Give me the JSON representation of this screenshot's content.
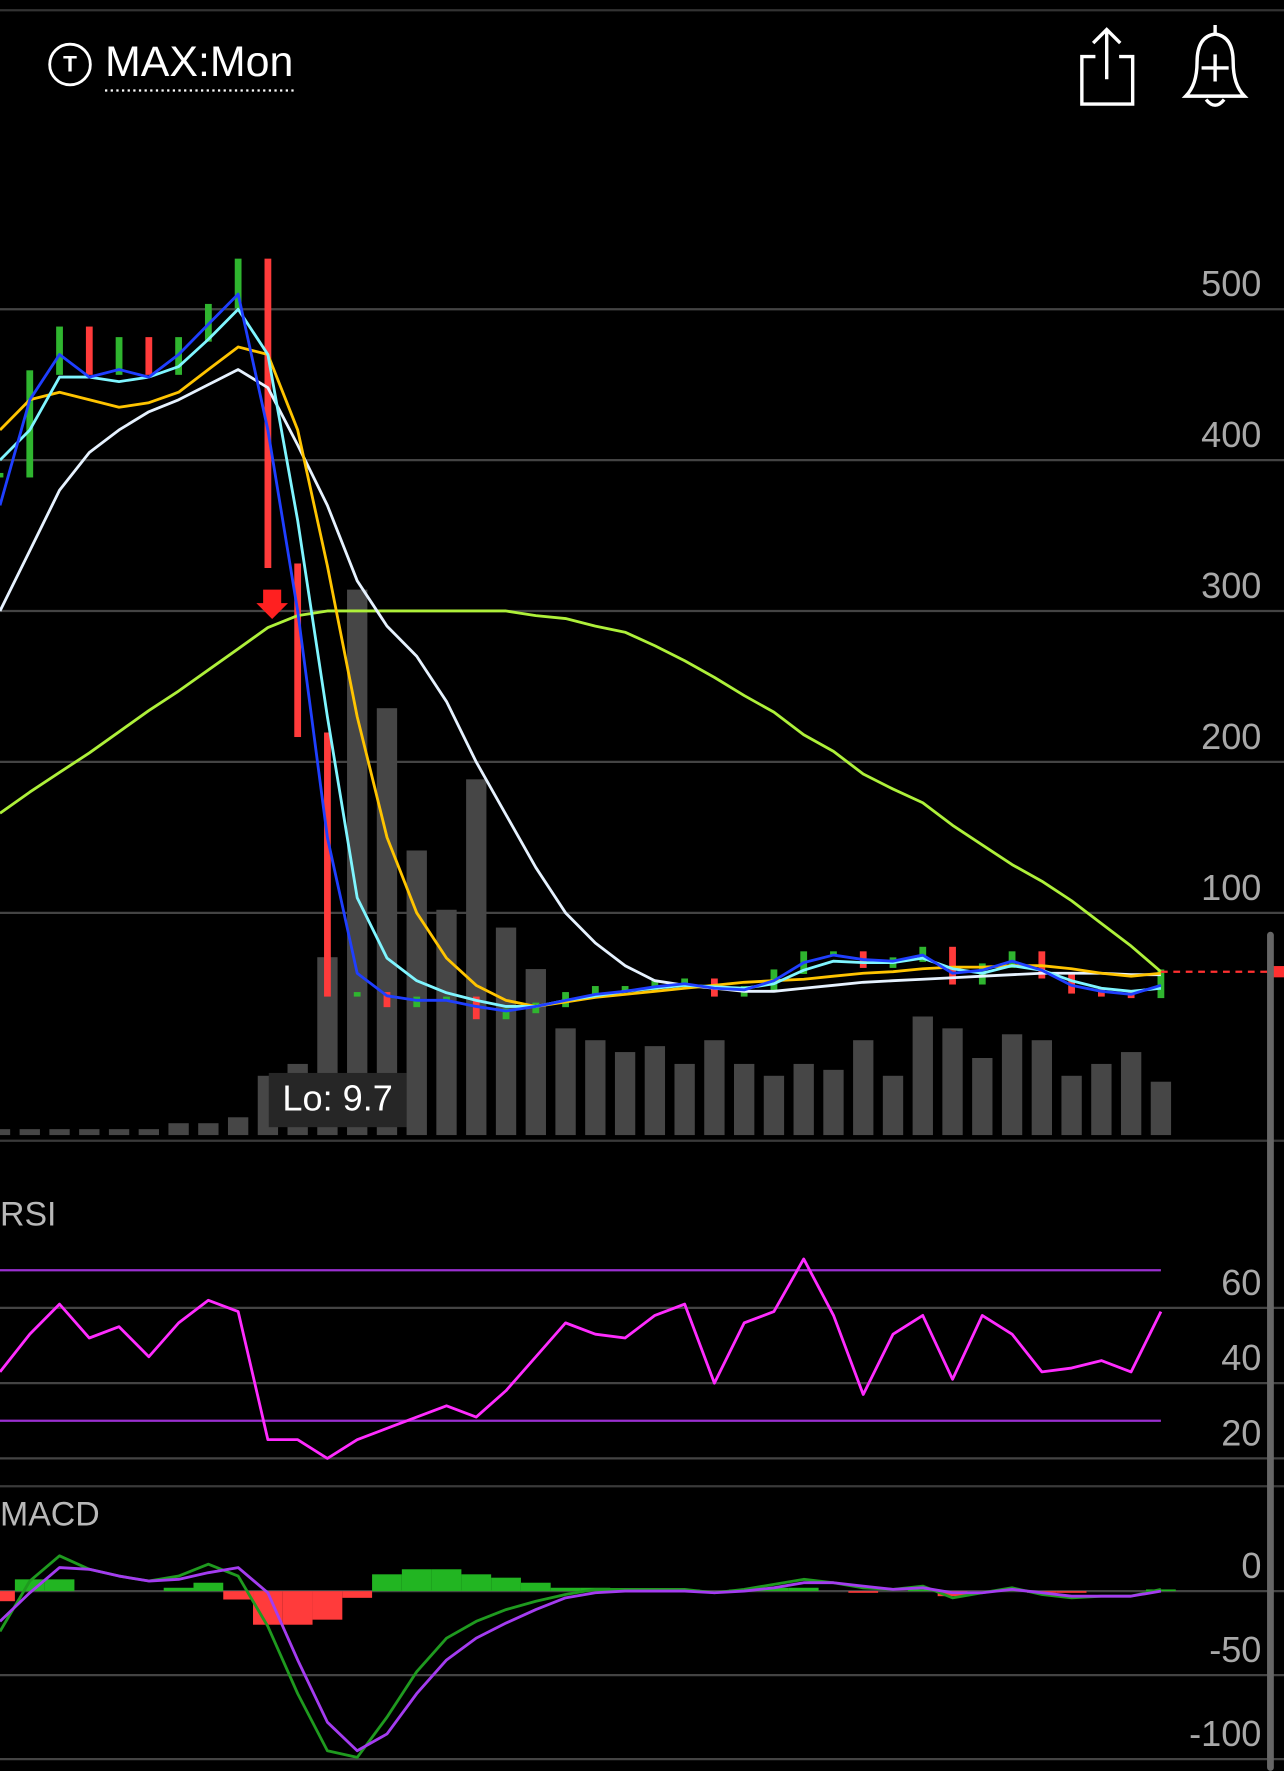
{
  "header": {
    "icon_letter": "T",
    "title": "MAX:Mon"
  },
  "chart_data": [
    {
      "type": "line",
      "annotation": "Lo: 9.7",
      "ylim": [
        -51,
        615
      ],
      "yticks": [
        100,
        200,
        300,
        400,
        500
      ],
      "y2lim": [
        0,
        100
      ],
      "grid": true,
      "last_value": 61,
      "last_color": "#ff3030",
      "series": [
        {
          "style": "bar",
          "axis": "y2",
          "color": "#464646",
          "values": [
            1,
            1,
            1,
            1,
            1,
            1,
            2,
            2,
            3,
            10,
            12,
            30,
            92,
            72,
            48,
            38,
            60,
            35,
            28,
            18,
            16,
            14,
            15,
            12,
            16,
            12,
            10,
            12,
            11,
            16,
            10,
            20,
            18,
            13,
            17,
            16,
            10,
            12,
            14,
            9
          ]
        },
        {
          "style": "candle",
          "up_color": "#2fb52f",
          "down_color": "#ff3b3b",
          "values": [
            390,
            458,
            487,
            458,
            480,
            458,
            480,
            502,
            532,
            330,
            218,
            46,
            46,
            39,
            43,
            43,
            31,
            35,
            39,
            46,
            50,
            50,
            54,
            55,
            46,
            50,
            61,
            73,
            73,
            65,
            69,
            76,
            54,
            65,
            73,
            58,
            48,
            46,
            45,
            61
          ]
        },
        {
          "style": "line",
          "color": "#aef03a",
          "values": [
            166,
            180,
            193,
            206,
            220,
            234,
            247,
            261,
            275,
            289,
            297,
            300,
            300,
            300,
            300,
            300,
            300,
            300,
            297,
            295,
            290,
            286,
            277,
            267,
            256,
            244,
            233,
            218,
            207,
            192,
            182,
            173,
            158,
            145,
            132,
            121,
            108,
            93,
            78,
            61
          ]
        },
        {
          "style": "line",
          "color": "#e6f2ff",
          "values": [
            300,
            340,
            380,
            405,
            420,
            432,
            440,
            450,
            460,
            448,
            410,
            370,
            320,
            290,
            270,
            240,
            200,
            165,
            130,
            100,
            80,
            65,
            55,
            52,
            50,
            48,
            48,
            50,
            52,
            54,
            55,
            56,
            57,
            58,
            59,
            60,
            60,
            60,
            59,
            59
          ]
        },
        {
          "style": "line",
          "color": "#ffc400",
          "values": [
            420,
            440,
            445,
            440,
            435,
            438,
            445,
            460,
            475,
            470,
            420,
            330,
            230,
            150,
            100,
            70,
            52,
            42,
            38,
            41,
            44,
            46,
            48,
            50,
            52,
            54,
            55,
            56,
            58,
            60,
            61,
            63,
            64,
            64,
            65,
            65,
            63,
            60,
            58,
            60
          ]
        },
        {
          "style": "line",
          "color": "#7ff5ff",
          "values": [
            400,
            420,
            455,
            455,
            452,
            455,
            462,
            480,
            500,
            470,
            360,
            230,
            110,
            70,
            55,
            47,
            42,
            38,
            38,
            42,
            45,
            48,
            50,
            52,
            51,
            50,
            53,
            62,
            68,
            67,
            67,
            70,
            63,
            60,
            65,
            62,
            55,
            50,
            48,
            50
          ]
        },
        {
          "style": "line",
          "color": "#1f3fff",
          "values": [
            370,
            440,
            470,
            455,
            460,
            455,
            470,
            490,
            510,
            420,
            300,
            150,
            60,
            45,
            42,
            42,
            38,
            35,
            38,
            42,
            46,
            48,
            51,
            53,
            50,
            49,
            55,
            67,
            72,
            69,
            68,
            72,
            60,
            62,
            68,
            62,
            52,
            48,
            46,
            52
          ]
        }
      ]
    },
    {
      "type": "line",
      "title": "RSI",
      "ylim": [
        12,
        90
      ],
      "yticks": [
        20,
        40,
        60
      ],
      "grid": true,
      "levels": [
        70,
        30
      ],
      "level_color": "#9a2fd0",
      "series": [
        {
          "style": "line",
          "color": "#ff2cff",
          "values": [
            43,
            53,
            61,
            52,
            55,
            47,
            56,
            62,
            59,
            25,
            25,
            20,
            25,
            28,
            31,
            34,
            31,
            38,
            47,
            56,
            53,
            52,
            58,
            61,
            40,
            56,
            59,
            73,
            58,
            37,
            53,
            58,
            41,
            58,
            53,
            43,
            44,
            46,
            43,
            59
          ]
        }
      ]
    },
    {
      "type": "line",
      "title": "MACD",
      "ylim": [
        -107,
        53
      ],
      "yticks": [
        -100,
        -50,
        0
      ],
      "grid": true,
      "series": [
        {
          "style": "histogram",
          "up_color": "#22b522",
          "down_color": "#ff3b3b",
          "values": [
            -6,
            7,
            7,
            0,
            0,
            0,
            2,
            5,
            -5,
            -20,
            -20,
            -17,
            -4,
            10,
            13,
            13,
            10,
            8,
            5,
            2,
            2,
            1,
            1,
            1,
            0,
            1,
            2,
            2,
            0,
            -1,
            0,
            1,
            -3,
            0,
            1,
            -1,
            -1,
            0,
            0,
            1
          ]
        },
        {
          "style": "line",
          "color": "#1f9a1f",
          "values": [
            -24,
            6,
            21,
            13,
            9,
            6,
            9,
            16,
            9,
            -21,
            -61,
            -95,
            -99,
            -75,
            -48,
            -28,
            -18,
            -11,
            -6,
            -2,
            1,
            1,
            1,
            1,
            -1,
            1,
            4,
            7,
            5,
            2,
            1,
            3,
            -4,
            -1,
            2,
            -2,
            -4,
            -3,
            -3,
            1
          ]
        },
        {
          "style": "line",
          "color": "#a43cf0",
          "values": [
            -18,
            -1,
            14,
            13,
            9,
            6,
            7,
            11,
            14,
            -1,
            -41,
            -78,
            -95,
            -85,
            -61,
            -41,
            -28,
            -19,
            -11,
            -4,
            -1,
            0,
            0,
            0,
            -1,
            0,
            2,
            5,
            5,
            3,
            1,
            2,
            -1,
            -1,
            1,
            -1,
            -3,
            -3,
            -3,
            0
          ]
        }
      ]
    }
  ]
}
